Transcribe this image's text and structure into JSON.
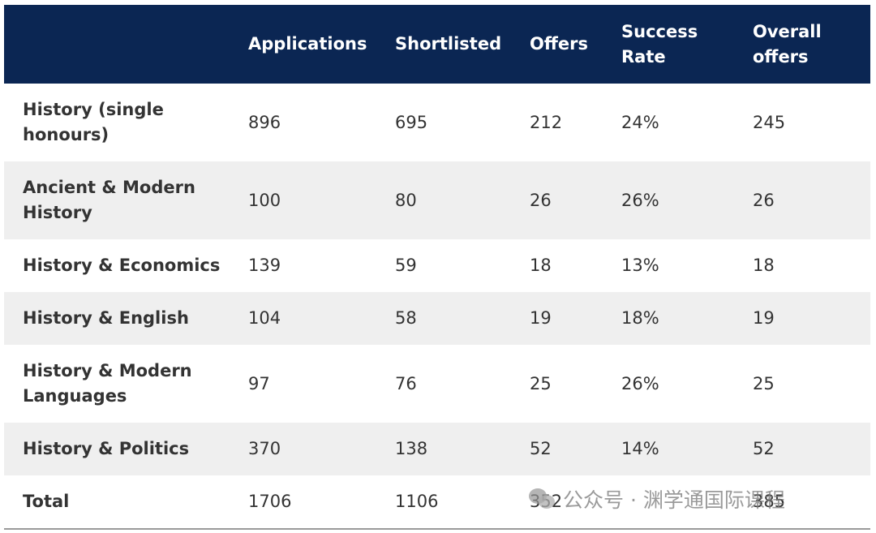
{
  "table": {
    "headers": [
      "",
      "Applications",
      "Shortlisted",
      "Offers",
      "Success Rate",
      "Overall offers"
    ],
    "rows": [
      [
        "History (single honours)",
        "896",
        "695",
        "212",
        "24%",
        "245"
      ],
      [
        "Ancient & Modern History",
        "100",
        "80",
        "26",
        "26%",
        "26"
      ],
      [
        "History & Economics",
        "139",
        "59",
        "18",
        "13%",
        "18"
      ],
      [
        "History & English",
        "104",
        "58",
        "19",
        "18%",
        "19"
      ],
      [
        "History & Modern Languages",
        "97",
        "76",
        "25",
        "26%",
        "25"
      ],
      [
        "History & Politics",
        "370",
        "138",
        "52",
        "14%",
        "52"
      ],
      [
        "Total",
        "1706",
        "1106",
        "352",
        "",
        "385"
      ]
    ]
  },
  "watermark": {
    "text": "公众号 · 渊学通国际课程",
    "icon": "wechat-icon"
  },
  "colors": {
    "header_bg": "#0b2653",
    "header_text": "#ffffff",
    "stripe": "#efefef"
  }
}
